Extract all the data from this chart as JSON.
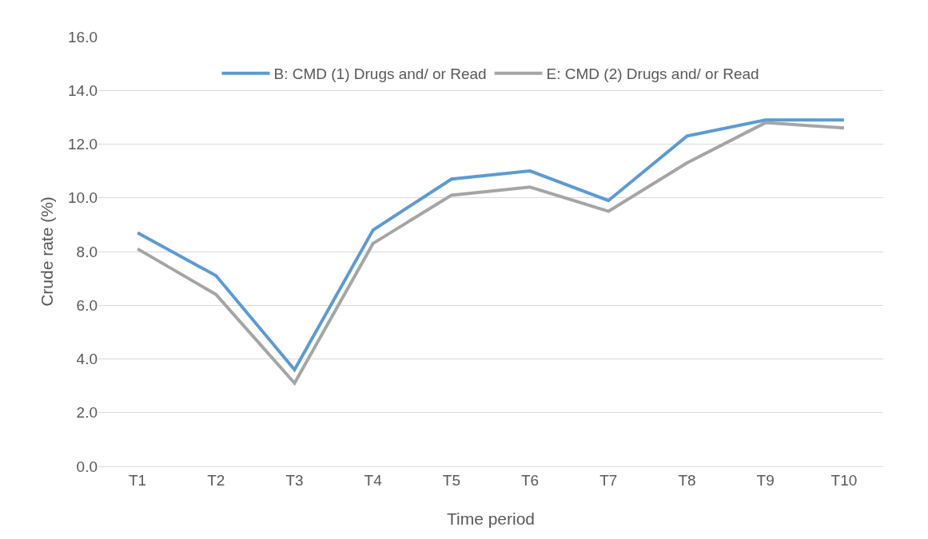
{
  "chart_data": {
    "type": "line",
    "xlabel": "Time period",
    "ylabel": "Crude rate (%)",
    "categories": [
      "T1",
      "T2",
      "T3",
      "T4",
      "T5",
      "T6",
      "T7",
      "T8",
      "T9",
      "T10"
    ],
    "series": [
      {
        "name": "B: CMD (1) Drugs and/ or Read",
        "color": "#5b9bd5",
        "values": [
          8.7,
          7.1,
          3.6,
          8.8,
          10.7,
          11.0,
          9.9,
          12.3,
          12.9,
          12.9
        ]
      },
      {
        "name": "E: CMD (2) Drugs and/ or Read",
        "color": "#a5a5a5",
        "values": [
          8.1,
          6.4,
          3.1,
          8.3,
          10.1,
          10.4,
          9.5,
          11.3,
          12.8,
          12.6
        ]
      }
    ],
    "ylim": [
      0,
      16
    ],
    "yticks": [
      {
        "value": 0,
        "label": "0.0"
      },
      {
        "value": 2,
        "label": "2.0"
      },
      {
        "value": 4,
        "label": "4.0"
      },
      {
        "value": 6,
        "label": "6.0"
      },
      {
        "value": 8,
        "label": "8.0"
      },
      {
        "value": 10,
        "label": "10.0"
      },
      {
        "value": 12,
        "label": "12.0"
      },
      {
        "value": 14,
        "label": "14.0"
      },
      {
        "value": 16,
        "label": "16.0"
      }
    ],
    "grid": "y",
    "legend": "top",
    "marker": "none",
    "line_style": "solid"
  }
}
